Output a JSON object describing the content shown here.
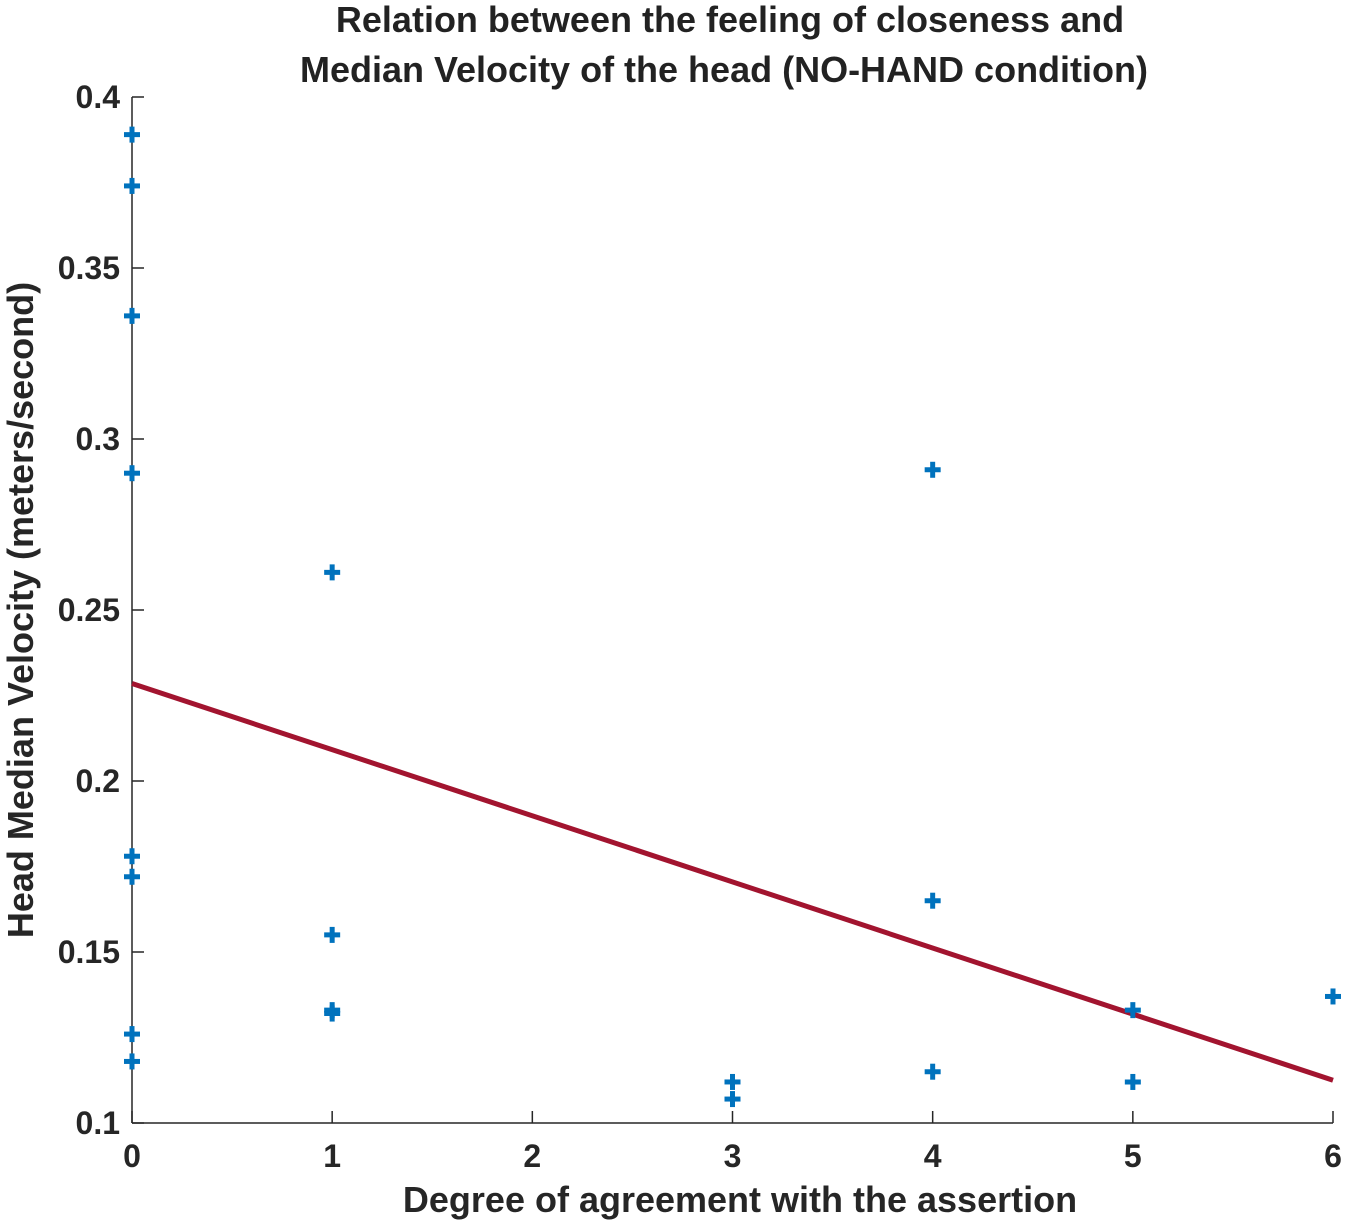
{
  "chart_data": {
    "type": "scatter",
    "title_lines": [
      "Relation between the feeling of closeness and",
      "Median Velocity of the head (NO-HAND condition)"
    ],
    "xlabel": "Degree of agreement with the assertion",
    "ylabel": "Head Median Velocity (meters/second)",
    "xlim": [
      0,
      6
    ],
    "ylim": [
      0.1,
      0.4
    ],
    "xticks": [
      0,
      1,
      2,
      3,
      4,
      5,
      6
    ],
    "xtick_labels": [
      "0",
      "1",
      "2",
      "3",
      "4",
      "5",
      "6"
    ],
    "yticks": [
      0.1,
      0.15,
      0.2,
      0.25,
      0.3,
      0.35,
      0.4
    ],
    "ytick_labels": [
      "0.1",
      "0.15",
      "0.2",
      "0.25",
      "0.3",
      "0.35",
      "0.4"
    ],
    "grid": false,
    "series": [
      {
        "name": "data",
        "marker": "+",
        "color": "#0072BD",
        "points": [
          {
            "x": 0,
            "y": 0.389
          },
          {
            "x": 0,
            "y": 0.374
          },
          {
            "x": 0,
            "y": 0.336
          },
          {
            "x": 0,
            "y": 0.29
          },
          {
            "x": 0,
            "y": 0.178
          },
          {
            "x": 0,
            "y": 0.172
          },
          {
            "x": 0,
            "y": 0.126
          },
          {
            "x": 0,
            "y": 0.118
          },
          {
            "x": 1,
            "y": 0.261
          },
          {
            "x": 1,
            "y": 0.155
          },
          {
            "x": 1,
            "y": 0.133
          },
          {
            "x": 1,
            "y": 0.132
          },
          {
            "x": 3,
            "y": 0.112
          },
          {
            "x": 3,
            "y": 0.107
          },
          {
            "x": 4,
            "y": 0.291
          },
          {
            "x": 4,
            "y": 0.165
          },
          {
            "x": 4,
            "y": 0.115
          },
          {
            "x": 5,
            "y": 0.133
          },
          {
            "x": 5,
            "y": 0.112
          },
          {
            "x": 6,
            "y": 0.137
          }
        ]
      },
      {
        "name": "fit",
        "type": "line",
        "color": "#A2142F",
        "points": [
          {
            "x": 0,
            "y": 0.2285
          },
          {
            "x": 6,
            "y": 0.1125
          }
        ]
      }
    ]
  }
}
